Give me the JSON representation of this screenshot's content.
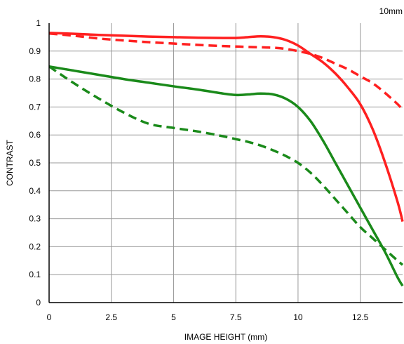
{
  "chart_data": {
    "type": "line",
    "annotation": "10mm",
    "xlabel": "IMAGE HEIGHT (mm)",
    "ylabel": "CONTRAST",
    "xlim": [
      0,
      14.2
    ],
    "ylim": [
      0,
      1
    ],
    "xticks": [
      0,
      2.5,
      5,
      7.5,
      10,
      12.5
    ],
    "xtick_labels": [
      "0",
      "2.5",
      "5",
      "7.5",
      "10",
      "12.5"
    ],
    "yticks": [
      0,
      0.1,
      0.2,
      0.3,
      0.4,
      0.5,
      0.6,
      0.7,
      0.8,
      0.9,
      1
    ],
    "ytick_labels": [
      "0",
      "0.1",
      "0.2",
      "0.3",
      "0.4",
      "0.5",
      "0.6",
      "0.7",
      "0.8",
      "0.9",
      "1"
    ],
    "grid": true,
    "colors": {
      "red": "#ff2020",
      "green": "#1a8a1a",
      "grid": "#999999",
      "frame": "#000000"
    },
    "series": [
      {
        "color": "red",
        "dash": "solid",
        "x": [
          0,
          1,
          2,
          3,
          4,
          5,
          6,
          7,
          7.5,
          8,
          8.5,
          9,
          9.5,
          10,
          10.5,
          11,
          11.5,
          12,
          12.5,
          13,
          13.5,
          14,
          14.2
        ],
        "y": [
          0.965,
          0.962,
          0.958,
          0.955,
          0.952,
          0.95,
          0.948,
          0.947,
          0.947,
          0.95,
          0.953,
          0.95,
          0.94,
          0.92,
          0.89,
          0.86,
          0.82,
          0.77,
          0.71,
          0.62,
          0.5,
          0.36,
          0.29
        ]
      },
      {
        "color": "red",
        "dash": "dashed",
        "x": [
          0,
          1,
          2,
          3,
          4,
          5,
          6,
          7,
          8,
          9,
          9.5,
          10,
          10.5,
          11,
          11.5,
          12,
          12.5,
          13,
          13.5,
          14,
          14.2
        ],
        "y": [
          0.963,
          0.955,
          0.945,
          0.938,
          0.932,
          0.927,
          0.922,
          0.918,
          0.915,
          0.912,
          0.908,
          0.9,
          0.89,
          0.875,
          0.855,
          0.835,
          0.81,
          0.785,
          0.75,
          0.71,
          0.69
        ]
      },
      {
        "color": "green",
        "dash": "solid",
        "x": [
          0,
          1,
          2,
          3,
          4,
          5,
          6,
          7,
          7.5,
          8,
          8.5,
          9,
          9.5,
          10,
          10.5,
          11,
          11.5,
          12,
          12.5,
          13,
          13.5,
          14,
          14.2
        ],
        "y": [
          0.845,
          0.83,
          0.815,
          0.8,
          0.787,
          0.774,
          0.762,
          0.748,
          0.743,
          0.745,
          0.748,
          0.745,
          0.73,
          0.7,
          0.65,
          0.58,
          0.5,
          0.42,
          0.34,
          0.26,
          0.18,
          0.09,
          0.06
        ]
      },
      {
        "color": "green",
        "dash": "dashed",
        "x": [
          0,
          1,
          2,
          3,
          4,
          5,
          6,
          7,
          7.5,
          8,
          8.5,
          9,
          9.5,
          10,
          10.5,
          11,
          11.5,
          12,
          12.5,
          13,
          13.5,
          14,
          14.2
        ],
        "y": [
          0.845,
          0.785,
          0.73,
          0.68,
          0.64,
          0.625,
          0.612,
          0.595,
          0.585,
          0.575,
          0.562,
          0.545,
          0.525,
          0.5,
          0.465,
          0.42,
          0.37,
          0.32,
          0.27,
          0.23,
          0.19,
          0.15,
          0.135
        ]
      }
    ]
  }
}
